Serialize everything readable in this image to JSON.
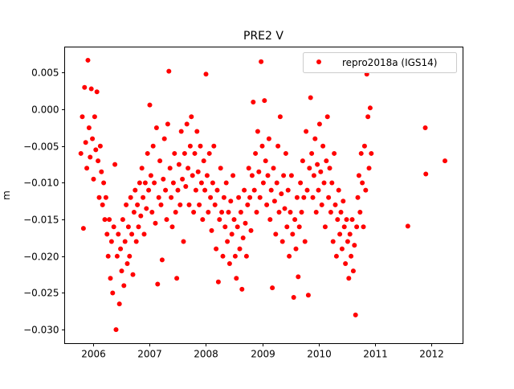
{
  "chart_data": {
    "type": "scatter",
    "title": "PRE2 V",
    "xlabel": "",
    "ylabel": "m",
    "xlim": [
      2005.486,
      2012.571
    ],
    "ylim": [
      -0.0319,
      0.0085
    ],
    "xticks": [
      2006,
      2007,
      2008,
      2009,
      2010,
      2011,
      2012
    ],
    "xtick_labels": [
      "2006",
      "2007",
      "2008",
      "2009",
      "2010",
      "2011",
      "2012"
    ],
    "yticks": [
      0.005,
      0.0,
      -0.005,
      -0.01,
      -0.015,
      -0.02,
      -0.025,
      -0.03
    ],
    "ytick_labels": [
      "0.005",
      "0.000",
      "−0.005",
      "−0.010",
      "−0.015",
      "−0.020",
      "−0.025",
      "−0.030"
    ],
    "grid": false,
    "legend_position": "top-right",
    "series": [
      {
        "name": "repro2018a (IGS14)",
        "color": "#ff0000",
        "marker": "circle",
        "points": [
          [
            2005.775,
            -0.006
          ],
          [
            2005.8,
            -0.001
          ],
          [
            2005.82,
            -0.0162
          ],
          [
            2005.84,
            0.003
          ],
          [
            2005.86,
            -0.0045
          ],
          [
            2005.88,
            -0.008
          ],
          [
            2005.9,
            0.0067
          ],
          [
            2005.92,
            -0.0025
          ],
          [
            2005.94,
            -0.0065
          ],
          [
            2005.96,
            0.0028
          ],
          [
            2005.98,
            -0.004
          ],
          [
            2006.0,
            -0.0095
          ],
          [
            2006.02,
            -0.001
          ],
          [
            2006.04,
            -0.0055
          ],
          [
            2006.06,
            0.0024
          ],
          [
            2006.08,
            -0.007
          ],
          [
            2006.1,
            -0.012
          ],
          [
            2006.12,
            -0.005
          ],
          [
            2006.14,
            -0.0085
          ],
          [
            2006.16,
            -0.013
          ],
          [
            2006.18,
            -0.01
          ],
          [
            2006.2,
            -0.015
          ],
          [
            2006.22,
            -0.012
          ],
          [
            2006.24,
            -0.017
          ],
          [
            2006.26,
            -0.02
          ],
          [
            2006.28,
            -0.015
          ],
          [
            2006.3,
            -0.023
          ],
          [
            2006.32,
            -0.018
          ],
          [
            2006.34,
            -0.025
          ],
          [
            2006.36,
            -0.016
          ],
          [
            2006.38,
            -0.0075
          ],
          [
            2006.4,
            -0.03
          ],
          [
            2006.42,
            -0.02
          ],
          [
            2006.44,
            -0.017
          ],
          [
            2006.46,
            -0.0265
          ],
          [
            2006.48,
            -0.019
          ],
          [
            2006.5,
            -0.022
          ],
          [
            2006.52,
            -0.015
          ],
          [
            2006.54,
            -0.024
          ],
          [
            2006.56,
            -0.018
          ],
          [
            2006.58,
            -0.013
          ],
          [
            2006.6,
            -0.021
          ],
          [
            2006.62,
            -0.016
          ],
          [
            2006.64,
            -0.02
          ],
          [
            2006.66,
            -0.012
          ],
          [
            2006.68,
            -0.017
          ],
          [
            2006.7,
            -0.0225
          ],
          [
            2006.72,
            -0.014
          ],
          [
            2006.74,
            -0.011
          ],
          [
            2006.76,
            -0.018
          ],
          [
            2006.78,
            -0.013
          ],
          [
            2006.8,
            -0.016
          ],
          [
            2006.82,
            -0.01
          ],
          [
            2006.84,
            -0.0145
          ],
          [
            2006.86,
            -0.008
          ],
          [
            2006.88,
            -0.012
          ],
          [
            2006.9,
            -0.017
          ],
          [
            2006.92,
            -0.01
          ],
          [
            2006.94,
            -0.0135
          ],
          [
            2006.96,
            -0.006
          ],
          [
            2006.98,
            -0.011
          ],
          [
            2007.0,
            0.0006
          ],
          [
            2007.02,
            -0.009
          ],
          [
            2007.04,
            -0.014
          ],
          [
            2007.06,
            -0.005
          ],
          [
            2007.08,
            -0.01
          ],
          [
            2007.1,
            -0.0155
          ],
          [
            2007.12,
            -0.0025
          ],
          [
            2007.14,
            -0.0238
          ],
          [
            2007.16,
            -0.012
          ],
          [
            2007.18,
            -0.007
          ],
          [
            2007.2,
            -0.013
          ],
          [
            2007.22,
            -0.0205
          ],
          [
            2007.24,
            -0.0095
          ],
          [
            2007.26,
            -0.004
          ],
          [
            2007.28,
            -0.011
          ],
          [
            2007.3,
            -0.015
          ],
          [
            2007.32,
            -0.002
          ],
          [
            2007.34,
            0.0052
          ],
          [
            2007.36,
            -0.008
          ],
          [
            2007.38,
            -0.012
          ],
          [
            2007.4,
            -0.016
          ],
          [
            2007.42,
            -0.01
          ],
          [
            2007.44,
            -0.006
          ],
          [
            2007.46,
            -0.014
          ],
          [
            2007.48,
            -0.023
          ],
          [
            2007.5,
            -0.011
          ],
          [
            2007.52,
            -0.0075
          ],
          [
            2007.54,
            -0.013
          ],
          [
            2007.56,
            -0.003
          ],
          [
            2007.58,
            -0.0095
          ],
          [
            2007.6,
            -0.018
          ],
          [
            2007.62,
            -0.006
          ],
          [
            2007.64,
            -0.0105
          ],
          [
            2007.66,
            -0.002
          ],
          [
            2007.68,
            -0.008
          ],
          [
            2007.7,
            -0.013
          ],
          [
            2007.72,
            -0.005
          ],
          [
            2007.74,
            -0.001
          ],
          [
            2007.76,
            -0.009
          ],
          [
            2007.78,
            -0.014
          ],
          [
            2007.8,
            -0.006
          ],
          [
            2007.82,
            -0.011
          ],
          [
            2007.84,
            -0.003
          ],
          [
            2007.86,
            -0.0085
          ],
          [
            2007.88,
            -0.013
          ],
          [
            2007.9,
            -0.005
          ],
          [
            2007.92,
            -0.01
          ],
          [
            2007.94,
            -0.015
          ],
          [
            2007.96,
            -0.007
          ],
          [
            2007.98,
            -0.011
          ],
          [
            2008.0,
            0.0048
          ],
          [
            2008.02,
            -0.009
          ],
          [
            2008.04,
            -0.014
          ],
          [
            2008.06,
            -0.006
          ],
          [
            2008.08,
            -0.012
          ],
          [
            2008.1,
            -0.0165
          ],
          [
            2008.12,
            -0.01
          ],
          [
            2008.14,
            -0.005
          ],
          [
            2008.16,
            -0.013
          ],
          [
            2008.18,
            -0.019
          ],
          [
            2008.2,
            -0.011
          ],
          [
            2008.22,
            -0.0235
          ],
          [
            2008.24,
            -0.015
          ],
          [
            2008.26,
            -0.008
          ],
          [
            2008.28,
            -0.014
          ],
          [
            2008.3,
            -0.02
          ],
          [
            2008.32,
            -0.012
          ],
          [
            2008.34,
            -0.016
          ],
          [
            2008.36,
            -0.01
          ],
          [
            2008.38,
            -0.018
          ],
          [
            2008.4,
            -0.014
          ],
          [
            2008.42,
            -0.021
          ],
          [
            2008.44,
            -0.0125
          ],
          [
            2008.46,
            -0.017
          ],
          [
            2008.48,
            -0.009
          ],
          [
            2008.5,
            -0.015
          ],
          [
            2008.52,
            -0.02
          ],
          [
            2008.54,
            -0.023
          ],
          [
            2008.56,
            -0.016
          ],
          [
            2008.58,
            -0.012
          ],
          [
            2008.6,
            -0.019
          ],
          [
            2008.62,
            -0.014
          ],
          [
            2008.64,
            -0.0245
          ],
          [
            2008.66,
            -0.0175
          ],
          [
            2008.68,
            -0.011
          ],
          [
            2008.7,
            -0.0155
          ],
          [
            2008.72,
            -0.02
          ],
          [
            2008.74,
            -0.013
          ],
          [
            2008.76,
            -0.008
          ],
          [
            2008.78,
            -0.012
          ],
          [
            2008.8,
            -0.0165
          ],
          [
            2008.82,
            -0.009
          ],
          [
            2008.84,
            0.001
          ],
          [
            2008.86,
            -0.011
          ],
          [
            2008.88,
            -0.006
          ],
          [
            2008.9,
            -0.014
          ],
          [
            2008.92,
            -0.003
          ],
          [
            2008.94,
            -0.0085
          ],
          [
            2008.96,
            -0.012
          ],
          [
            2008.98,
            0.0065
          ],
          [
            2009.0,
            -0.005
          ],
          [
            2009.02,
            -0.01
          ],
          [
            2009.04,
            0.0012
          ],
          [
            2009.06,
            -0.007
          ],
          [
            2009.08,
            -0.013
          ],
          [
            2009.1,
            -0.009
          ],
          [
            2009.12,
            -0.004
          ],
          [
            2009.14,
            -0.015
          ],
          [
            2009.16,
            -0.011
          ],
          [
            2009.18,
            -0.0243
          ],
          [
            2009.2,
            -0.008
          ],
          [
            2009.22,
            -0.0125
          ],
          [
            2009.24,
            -0.017
          ],
          [
            2009.26,
            -0.01
          ],
          [
            2009.28,
            -0.005
          ],
          [
            2009.3,
            -0.014
          ],
          [
            2009.32,
            -0.001
          ],
          [
            2009.34,
            -0.0115
          ],
          [
            2009.36,
            -0.018
          ],
          [
            2009.38,
            -0.009
          ],
          [
            2009.4,
            -0.0135
          ],
          [
            2009.42,
            -0.006
          ],
          [
            2009.44,
            -0.016
          ],
          [
            2009.46,
            -0.011
          ],
          [
            2009.48,
            -0.02
          ],
          [
            2009.5,
            -0.014
          ],
          [
            2009.52,
            -0.009
          ],
          [
            2009.54,
            -0.017
          ],
          [
            2009.56,
            -0.0256
          ],
          [
            2009.58,
            -0.015
          ],
          [
            2009.6,
            -0.019
          ],
          [
            2009.62,
            -0.012
          ],
          [
            2009.64,
            -0.0228
          ],
          [
            2009.66,
            -0.016
          ],
          [
            2009.68,
            -0.01
          ],
          [
            2009.7,
            -0.014
          ],
          [
            2009.72,
            -0.007
          ],
          [
            2009.74,
            -0.012
          ],
          [
            2009.76,
            -0.018
          ],
          [
            2009.78,
            -0.003
          ],
          [
            2009.8,
            -0.011
          ],
          [
            2009.82,
            -0.0253
          ],
          [
            2009.84,
            -0.008
          ],
          [
            2009.86,
            0.0016
          ],
          [
            2009.88,
            -0.006
          ],
          [
            2009.9,
            -0.012
          ],
          [
            2009.92,
            -0.009
          ],
          [
            2009.94,
            -0.004
          ],
          [
            2009.96,
            -0.014
          ],
          [
            2009.98,
            -0.0075
          ],
          [
            2010.0,
            -0.011
          ],
          [
            2010.02,
            -0.002
          ],
          [
            2010.04,
            -0.0085
          ],
          [
            2010.06,
            -0.013
          ],
          [
            2010.08,
            -0.005
          ],
          [
            2010.1,
            -0.01
          ],
          [
            2010.12,
            -0.016
          ],
          [
            2010.14,
            -0.007
          ],
          [
            2010.16,
            -0.001
          ],
          [
            2010.18,
            -0.012
          ],
          [
            2010.2,
            -0.008
          ],
          [
            2010.22,
            -0.014
          ],
          [
            2010.24,
            -0.01
          ],
          [
            2010.26,
            -0.018
          ],
          [
            2010.28,
            -0.006
          ],
          [
            2010.3,
            -0.013
          ],
          [
            2010.32,
            -0.02
          ],
          [
            2010.34,
            -0.015
          ],
          [
            2010.36,
            -0.011
          ],
          [
            2010.38,
            -0.017
          ],
          [
            2010.4,
            -0.014
          ],
          [
            2010.42,
            -0.019
          ],
          [
            2010.44,
            -0.0125
          ],
          [
            2010.46,
            -0.016
          ],
          [
            2010.48,
            -0.021
          ],
          [
            2010.5,
            -0.015
          ],
          [
            2010.52,
            -0.018
          ],
          [
            2010.54,
            -0.023
          ],
          [
            2010.56,
            -0.017
          ],
          [
            2010.58,
            -0.02
          ],
          [
            2010.6,
            -0.015
          ],
          [
            2010.62,
            -0.022
          ],
          [
            2010.64,
            -0.0185
          ],
          [
            2010.66,
            -0.028
          ],
          [
            2010.68,
            -0.016
          ],
          [
            2010.7,
            -0.012
          ],
          [
            2010.72,
            -0.009
          ],
          [
            2010.74,
            -0.014
          ],
          [
            2010.76,
            -0.006
          ],
          [
            2010.78,
            -0.01
          ],
          [
            2010.8,
            -0.016
          ],
          [
            2010.82,
            -0.005
          ],
          [
            2010.84,
            -0.011
          ],
          [
            2010.86,
            0.0048
          ],
          [
            2010.88,
            -0.001
          ],
          [
            2010.9,
            -0.008
          ],
          [
            2010.92,
            0.0002
          ],
          [
            2010.94,
            -0.006
          ],
          [
            2011.59,
            -0.0159
          ],
          [
            2011.9,
            -0.0025
          ],
          [
            2011.91,
            -0.0088
          ],
          [
            2012.25,
            -0.007
          ]
        ]
      }
    ]
  }
}
